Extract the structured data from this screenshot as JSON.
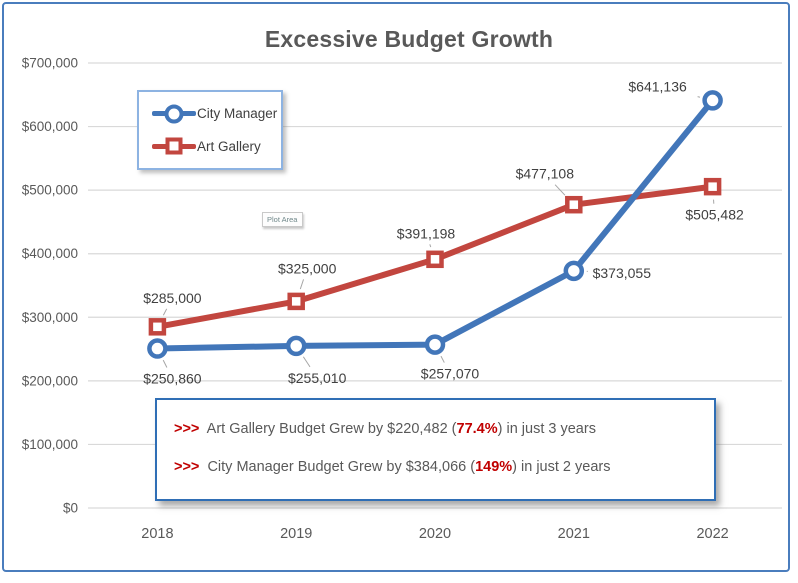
{
  "chart_data": {
    "type": "line",
    "title": "Excessive Budget Growth",
    "categories": [
      "2018",
      "2019",
      "2020",
      "2021",
      "2022"
    ],
    "series": [
      {
        "name": "City Manager",
        "color": "#4276b9",
        "marker": "circle",
        "values": [
          250860,
          255010,
          257070,
          373055,
          641136
        ],
        "data_labels": [
          "$250,860",
          "$255,010",
          "$257,070",
          "$373,055",
          "$641,136"
        ],
        "label_offsets": [
          [
            15,
            30
          ],
          [
            21,
            32
          ],
          [
            15,
            29
          ],
          [
            48,
            2
          ],
          [
            -55,
            -14
          ]
        ]
      },
      {
        "name": "Art Gallery",
        "color": "#c2463f",
        "marker": "square",
        "values": [
          285000,
          325000,
          391198,
          477108,
          505482
        ],
        "data_labels": [
          "$285,000",
          "$325,000",
          "$391,198",
          "$477,108",
          "$505,482"
        ],
        "label_offsets": [
          [
            15,
            -29
          ],
          [
            11,
            -33
          ],
          [
            -9,
            -26
          ],
          [
            -29,
            -31
          ],
          [
            2,
            28
          ]
        ]
      }
    ],
    "xlabel": "",
    "ylabel": "",
    "ylim": [
      0,
      700000
    ],
    "ytick_step": 100000,
    "ytick_labels": [
      "$0",
      "$100,000",
      "$200,000",
      "$300,000",
      "$400,000",
      "$500,000",
      "$600,000",
      "$700,000"
    ],
    "grid": true,
    "legend_position": "inside-top-left"
  },
  "legend": {
    "items": [
      {
        "label": "City Manager",
        "color": "#4276b9",
        "marker": "circle"
      },
      {
        "label": "Art Gallery",
        "color": "#c2463f",
        "marker": "square"
      }
    ]
  },
  "plot_area_label": "Plot Area",
  "annotation": {
    "highlight_color": "#c00000",
    "lines": [
      {
        "text": ">>>  Art Gallery Budget Grew by $220,482 (77.4%) in just 3 years",
        "segments": [
          {
            "t": ">>>",
            "hl": true
          },
          {
            "t": "  Art Gallery Budget Grew by $220,482 ("
          },
          {
            "t": "77.4%",
            "hl": true
          },
          {
            "t": ") in just 3 years"
          }
        ]
      },
      {
        "text": ">>>  City Manager Budget Grew by $384,066 (149%) in just 2 years",
        "segments": [
          {
            "t": ">>>",
            "hl": true
          },
          {
            "t": "  City Manager Budget Grew by $384,066 ("
          },
          {
            "t": "149%",
            "hl": true
          },
          {
            "t": ") in just 2 years"
          }
        ]
      }
    ]
  },
  "colors": {
    "frame": "#4a7dbd",
    "grid": "#d9d9d9",
    "axis_text": "#595959",
    "label_text": "#404040",
    "legend_border": "#8db3e2",
    "annotation_border": "#2f6eb5"
  }
}
